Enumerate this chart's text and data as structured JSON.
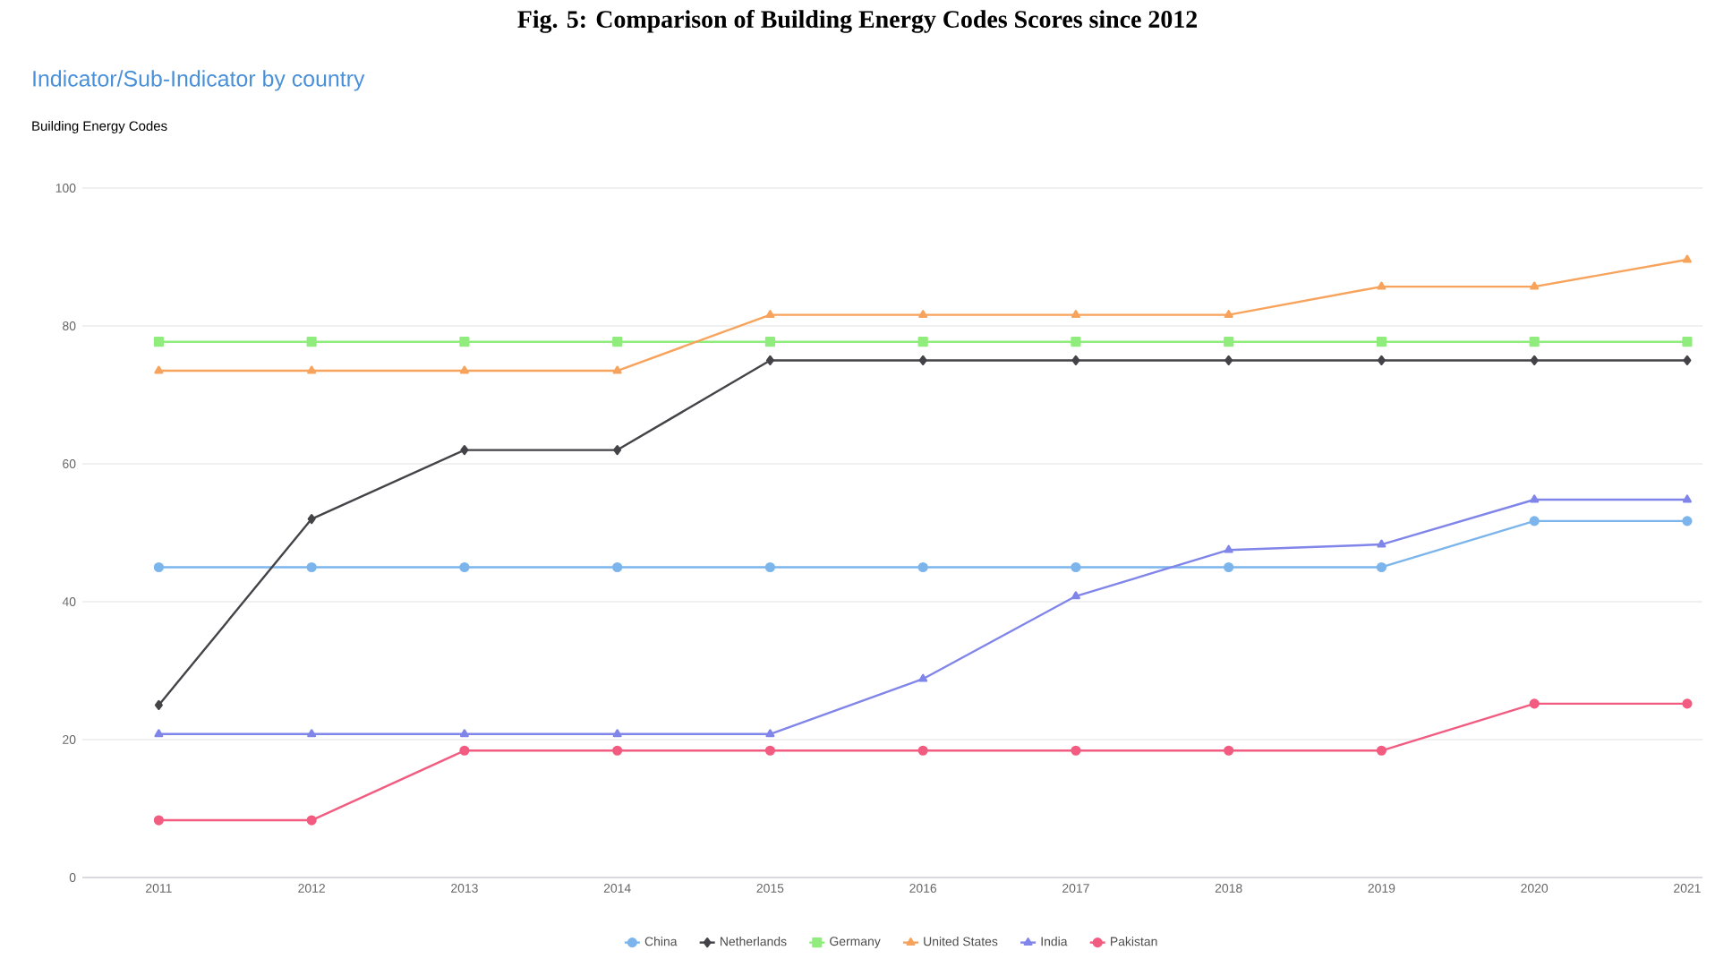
{
  "chart_data": {
    "type": "line",
    "title": "Indicator/Sub-Indicator by country",
    "subtitle": "Building Energy Codes",
    "annotations": [
      "Fig. 5: Comparison of Building Energy Codes Scores since 2012"
    ],
    "categories": [
      "2011",
      "2012",
      "2013",
      "2014",
      "2015",
      "2016",
      "2017",
      "2018",
      "2019",
      "2020",
      "2021"
    ],
    "series": [
      {
        "name": "China",
        "color": "#7cb5ec",
        "marker": "circle",
        "values": [
          45,
          45,
          45,
          45,
          45,
          45,
          45,
          45,
          45,
          51.7,
          51.7
        ]
      },
      {
        "name": "Netherlands",
        "color": "#434348",
        "marker": "diamond",
        "values": [
          25,
          52,
          62,
          62,
          75,
          75,
          75,
          75,
          75,
          75,
          75
        ]
      },
      {
        "name": "Germany",
        "color": "#90ed7d",
        "marker": "square",
        "values": [
          77.7,
          77.7,
          77.7,
          77.7,
          77.7,
          77.7,
          77.7,
          77.7,
          77.7,
          77.7,
          77.7
        ]
      },
      {
        "name": "United States",
        "color": "#f7a35c",
        "marker": "triangle",
        "values": [
          73.5,
          73.5,
          73.5,
          73.5,
          81.6,
          81.6,
          81.6,
          81.6,
          85.7,
          85.7,
          89.6
        ]
      },
      {
        "name": "India",
        "color": "#8085e9",
        "marker": "triangle",
        "values": [
          20.8,
          20.8,
          20.8,
          20.8,
          20.8,
          28.8,
          40.8,
          47.5,
          48.3,
          54.8,
          54.8
        ]
      },
      {
        "name": "Pakistan",
        "color": "#f15c80",
        "marker": "circle",
        "values": [
          8.3,
          8.3,
          18.4,
          18.4,
          18.4,
          18.4,
          18.4,
          18.4,
          18.4,
          25.2,
          25.2
        ]
      }
    ],
    "ylim": [
      0,
      100
    ],
    "yticks": [
      0,
      20,
      40,
      60,
      80,
      100
    ],
    "grid": "y",
    "legend": "bottom",
    "line_style": "solid"
  }
}
